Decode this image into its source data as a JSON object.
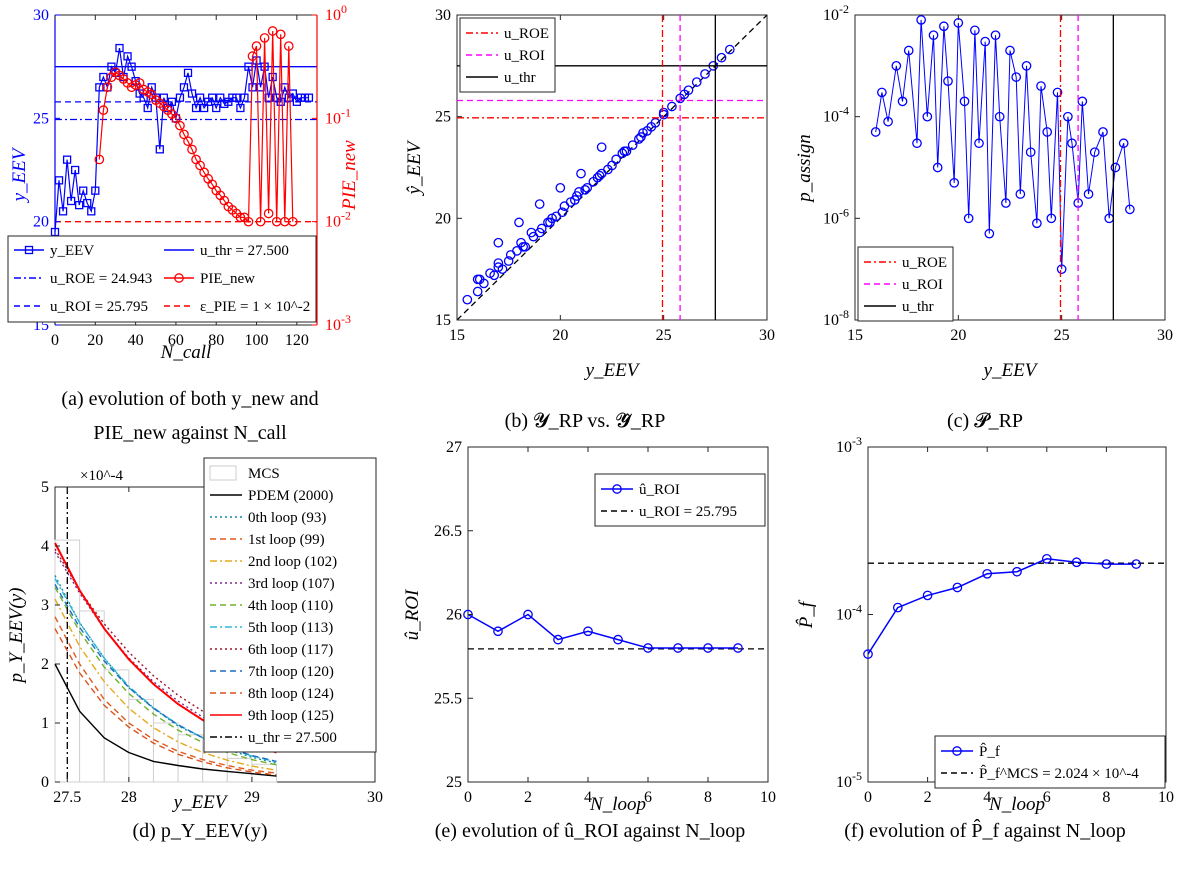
{
  "captions": {
    "a_line1": "(a) evolution of both y_new and",
    "a_line2": "PIE_new against N_call",
    "b": "(b) 𝓨_RP vs. 𝓨̂_RP",
    "c": "(c) 𝓟_RP",
    "d": "(d) p_Y_EEV(y)",
    "e": "(e) evolution of û_ROI against N_loop",
    "f": "(f) evolution of P̂_f against N_loop"
  },
  "chart_data": [
    {
      "id": "a",
      "type": "line",
      "xlabel": "N_call",
      "ylabel": "y_EEV",
      "y2label": "PIE_new",
      "xlim": [
        0,
        130
      ],
      "ylim": [
        15,
        30
      ],
      "y2lim": [
        0.001,
        1
      ],
      "y2scale": "log",
      "xticks": [
        "0",
        "20",
        "40",
        "60",
        "80",
        "100",
        "120"
      ],
      "yticks": [
        "15",
        "20",
        "25",
        "30"
      ],
      "y2ticks": [
        "10^-3",
        "10^-2",
        "10^-1",
        "10^0"
      ],
      "colors": {
        "left": "#0000ff",
        "right": "#ff0000"
      },
      "lines": {
        "u_thr": 27.5,
        "u_ROE": 24.943,
        "u_ROI": 25.795,
        "eps_PIE": 0.01
      },
      "legend": [
        {
          "label": "y_EEV",
          "style": "solid-square",
          "color": "#0000ff"
        },
        {
          "label": "u_thr = 27.500",
          "style": "solid",
          "color": "#0000ff"
        },
        {
          "label": "u_ROE = 24.943",
          "style": "dashdot",
          "color": "#0000ff"
        },
        {
          "label": "PIE_new",
          "style": "solid-circle",
          "color": "#ff0000"
        },
        {
          "label": "u_ROI = 25.795",
          "style": "dashed",
          "color": "#0000ff"
        },
        {
          "label": "ε_PIE = 1 × 10^-2",
          "style": "dashed",
          "color": "#ff0000"
        }
      ],
      "series": [
        {
          "name": "y_EEV",
          "x": [
            0,
            2,
            4,
            6,
            8,
            10,
            12,
            14,
            16,
            18,
            20,
            22,
            24,
            26,
            28,
            30,
            32,
            34,
            36,
            38,
            40,
            42,
            44,
            46,
            48,
            50,
            52,
            54,
            56,
            58,
            60,
            62,
            64,
            66,
            68,
            70,
            72,
            74,
            76,
            78,
            80,
            82,
            84,
            86,
            88,
            90,
            92,
            94,
            96,
            98,
            100,
            102,
            104,
            106,
            108,
            110,
            112,
            114,
            116,
            118,
            120,
            122,
            124,
            126
          ],
          "values": [
            19.5,
            22.0,
            20.5,
            23.0,
            21.0,
            22.5,
            20.8,
            21.5,
            20.9,
            20.5,
            21.5,
            26.5,
            27.0,
            26.5,
            27.5,
            27.2,
            28.4,
            27.0,
            28.0,
            27.5,
            26.8,
            26.2,
            26.0,
            25.5,
            26.5,
            26.0,
            23.5,
            26.0,
            25.5,
            25.8,
            25.0,
            26.0,
            26.5,
            27.2,
            26.2,
            25.5,
            26.0,
            25.5,
            25.8,
            26.0,
            25.5,
            26.0,
            25.7,
            25.8,
            26.0,
            26.0,
            25.5,
            26.0,
            27.5,
            26.5,
            27.8,
            26.5,
            27.5,
            26.0,
            27.0,
            26.0,
            25.8,
            26.5,
            26.0,
            26.2,
            25.8,
            26.0,
            26.0,
            26.0
          ]
        },
        {
          "name": "PIE_new",
          "x": [
            22,
            24,
            26,
            28,
            30,
            32,
            34,
            36,
            38,
            40,
            42,
            44,
            46,
            48,
            50,
            52,
            54,
            56,
            58,
            60,
            62,
            64,
            66,
            68,
            70,
            72,
            74,
            76,
            78,
            80,
            82,
            84,
            86,
            88,
            90,
            92,
            94,
            96,
            98,
            100,
            102,
            104,
            106,
            108,
            110,
            112,
            114,
            116,
            118
          ],
          "values": [
            0.04,
            0.12,
            0.2,
            0.25,
            0.28,
            0.26,
            0.24,
            0.22,
            0.2,
            0.21,
            0.22,
            0.19,
            0.18,
            0.17,
            0.15,
            0.14,
            0.13,
            0.12,
            0.11,
            0.1,
            0.085,
            0.07,
            0.06,
            0.05,
            0.04,
            0.035,
            0.03,
            0.026,
            0.023,
            0.02,
            0.018,
            0.016,
            0.014,
            0.013,
            0.012,
            0.011,
            0.011,
            0.01,
            0.4,
            0.5,
            0.01,
            0.6,
            0.012,
            0.7,
            0.01,
            0.65,
            0.01,
            0.5,
            0.01
          ]
        }
      ]
    },
    {
      "id": "b",
      "type": "scatter",
      "xlabel": "y_EEV",
      "ylabel": "ŷ_EEV",
      "xlim": [
        15,
        30
      ],
      "ylim": [
        15,
        30
      ],
      "xticks": [
        "15",
        "20",
        "25",
        "30"
      ],
      "yticks": [
        "15",
        "20",
        "25",
        "30"
      ],
      "lines": {
        "u_ROE": 24.943,
        "u_ROI": 25.795,
        "u_thr": 27.5
      },
      "legend": [
        {
          "label": "u_ROE",
          "style": "dashdot",
          "color": "#ff0000"
        },
        {
          "label": "u_ROI",
          "style": "dashed",
          "color": "#ff00ff"
        },
        {
          "label": "u_thr",
          "style": "solid",
          "color": "#000000"
        }
      ],
      "series": [
        {
          "name": "",
          "x": [
            15.5,
            16.0,
            16.3,
            16.8,
            17.2,
            17.5,
            17.9,
            18.3,
            18.7,
            19.0,
            19.4,
            19.8,
            20.1,
            20.5,
            20.9,
            21.2,
            21.6,
            22.0,
            22.3,
            22.7,
            23.1,
            23.5,
            23.9,
            24.2,
            24.6,
            25.0,
            25.4,
            25.8,
            26.2,
            26.6,
            27.0,
            27.4,
            27.8,
            28.2,
            16.1,
            16.6,
            17.0,
            17.6,
            18.1,
            18.6,
            19.1,
            19.6,
            20.2,
            20.8,
            21.3,
            21.8,
            22.5,
            23.2,
            23.8,
            24.4,
            17.0,
            18.0,
            19.0,
            20.0,
            21.0,
            22.0,
            16.0,
            17.0,
            18.2,
            19.5,
            20.7,
            21.9,
            23.0,
            24.0,
            25.0,
            26.0
          ],
          "values": [
            16.0,
            16.4,
            16.8,
            17.2,
            17.5,
            17.9,
            18.4,
            18.6,
            19.1,
            19.3,
            19.8,
            20.1,
            20.3,
            20.8,
            21.3,
            21.4,
            21.8,
            22.2,
            22.4,
            22.9,
            23.3,
            23.6,
            24.0,
            24.3,
            24.7,
            25.1,
            25.5,
            25.9,
            26.3,
            26.7,
            27.1,
            27.5,
            27.9,
            28.3,
            17.0,
            17.3,
            17.8,
            18.2,
            18.8,
            19.3,
            19.5,
            20.0,
            20.6,
            21.1,
            21.5,
            22.0,
            22.6,
            23.3,
            23.9,
            24.5,
            18.8,
            19.8,
            20.7,
            21.5,
            22.2,
            23.5,
            17.0,
            17.6,
            18.6,
            19.8,
            20.9,
            22.1,
            23.2,
            24.2,
            25.2,
            26.1
          ]
        }
      ]
    },
    {
      "id": "c",
      "type": "line",
      "xlabel": "y_EEV",
      "ylabel": "p_assign",
      "xlim": [
        15,
        30
      ],
      "ylim": [
        1e-08,
        0.01
      ],
      "yscale": "log",
      "xticks": [
        "15",
        "20",
        "25",
        "30"
      ],
      "yticks": [
        "10^-8",
        "10^-6",
        "10^-4",
        "10^-2"
      ],
      "lines": {
        "u_ROE": 24.943,
        "u_ROI": 25.795,
        "u_thr": 27.5
      },
      "legend": [
        {
          "label": "u_ROE",
          "style": "dashdot",
          "color": "#ff0000"
        },
        {
          "label": "u_ROI",
          "style": "dashed",
          "color": "#ff00ff"
        },
        {
          "label": "u_thr",
          "style": "solid",
          "color": "#000000"
        }
      ],
      "series": [
        {
          "name": "",
          "x": [
            16.0,
            16.3,
            16.6,
            17.0,
            17.3,
            17.6,
            18.0,
            18.2,
            18.5,
            18.8,
            19.0,
            19.3,
            19.5,
            19.8,
            20.0,
            20.3,
            20.5,
            20.8,
            21.0,
            21.3,
            21.5,
            21.8,
            22.0,
            22.3,
            22.5,
            22.8,
            23.0,
            23.3,
            23.5,
            23.8,
            24.0,
            24.3,
            24.5,
            24.8,
            25.0,
            25.3,
            25.5,
            25.8,
            26.0,
            26.3,
            26.6,
            27.0,
            27.3,
            27.6,
            28.0,
            28.3
          ],
          "values": [
            5e-05,
            0.0003,
            8e-05,
            0.001,
            0.0002,
            0.002,
            3e-05,
            0.008,
            0.0001,
            0.004,
            1e-05,
            0.006,
            0.0005,
            5e-06,
            0.007,
            0.0002,
            1e-06,
            0.005,
            3e-05,
            0.003,
            5e-07,
            0.004,
            0.0001,
            2e-06,
            0.002,
            0.0006,
            3e-06,
            0.001,
            2e-05,
            8e-07,
            0.0004,
            5e-05,
            1e-06,
            0.0003,
            1e-07,
            0.0001,
            3e-05,
            2e-06,
            0.0002,
            3e-06,
            2e-05,
            5e-05,
            1e-06,
            1e-05,
            3e-05,
            1.5e-06
          ]
        }
      ]
    },
    {
      "id": "d",
      "type": "line",
      "xlabel": "y_EEV",
      "ylabel": "p_Y_EEV(y)",
      "exponent_label": "×10^-4",
      "xlim": [
        27.4,
        30
      ],
      "ylim": [
        0,
        5
      ],
      "xticks": [
        "27.5",
        "28",
        "29",
        "30"
      ],
      "yticks": [
        "0",
        "1",
        "2",
        "3",
        "4",
        "5"
      ],
      "lines": {
        "u_thr": 27.5
      },
      "legend": [
        {
          "label": "MCS",
          "color": "#cccccc"
        },
        {
          "label": "PDEM (2000)",
          "color": "#000000"
        },
        {
          "label": "0th loop (93)",
          "color": "#0f8fa6"
        },
        {
          "label": "1st loop (99)",
          "color": "#e05a1c"
        },
        {
          "label": "2nd loop (102)",
          "color": "#e6a81c"
        },
        {
          "label": "3rd loop (107)",
          "color": "#7a2a8f"
        },
        {
          "label": "4th loop (110)",
          "color": "#6fb22c"
        },
        {
          "label": "5th loop (113)",
          "color": "#2fb7d9"
        },
        {
          "label": "6th loop (117)",
          "color": "#a0142f"
        },
        {
          "label": "7th loop (120)",
          "color": "#1a6fbf"
        },
        {
          "label": "8th loop (124)",
          "color": "#d9531e"
        },
        {
          "label": "9th loop (125)",
          "color": "#ff0000"
        },
        {
          "label": "u_thr = 27.500",
          "color": "#000000"
        }
      ],
      "mcs_bars": [
        4.1,
        2.9,
        1.9,
        1.4,
        1.0,
        0.8,
        0.6,
        0.4,
        0.3
      ],
      "mcs_bin_starts": [
        27.4,
        27.6,
        27.8,
        28.0,
        28.2,
        28.4,
        28.6,
        28.8,
        29.0
      ],
      "curves": {
        "x": [
          27.4,
          27.6,
          27.8,
          28.0,
          28.2,
          28.4,
          28.6,
          28.8,
          29.0,
          29.2
        ],
        "PDEM": [
          2.0,
          1.2,
          0.75,
          0.5,
          0.35,
          0.28,
          0.22,
          0.18,
          0.14,
          0.1
        ],
        "loop0": [
          3.5,
          2.7,
          2.1,
          1.6,
          1.25,
          0.95,
          0.75,
          0.55,
          0.42,
          0.32
        ],
        "loop1": [
          2.8,
          2.0,
          1.4,
          1.0,
          0.72,
          0.52,
          0.38,
          0.28,
          0.2,
          0.15
        ],
        "loop2": [
          3.1,
          2.3,
          1.7,
          1.25,
          0.92,
          0.68,
          0.5,
          0.37,
          0.27,
          0.2
        ],
        "loop3": [
          3.9,
          3.2,
          2.6,
          2.1,
          1.7,
          1.37,
          1.1,
          0.88,
          0.7,
          0.55
        ],
        "loop4": [
          3.3,
          2.55,
          1.95,
          1.5,
          1.15,
          0.88,
          0.67,
          0.5,
          0.38,
          0.29
        ],
        "loop5": [
          3.45,
          2.7,
          2.1,
          1.62,
          1.26,
          0.97,
          0.75,
          0.58,
          0.44,
          0.34
        ],
        "loop6": [
          3.95,
          3.25,
          2.68,
          2.2,
          1.8,
          1.47,
          1.2,
          0.97,
          0.78,
          0.63
        ],
        "loop7": [
          3.35,
          2.62,
          2.05,
          1.6,
          1.25,
          0.97,
          0.75,
          0.58,
          0.45,
          0.35
        ],
        "loop8": [
          2.6,
          1.85,
          1.3,
          0.93,
          0.66,
          0.47,
          0.34,
          0.24,
          0.17,
          0.12
        ],
        "loop9": [
          4.05,
          3.25,
          2.6,
          2.08,
          1.66,
          1.32,
          1.05,
          0.83,
          0.65,
          0.5
        ]
      }
    },
    {
      "id": "e",
      "type": "line",
      "xlabel": "N_loop",
      "ylabel": "û_ROI",
      "xlim": [
        0,
        10
      ],
      "ylim": [
        25,
        27
      ],
      "xticks": [
        "0",
        "2",
        "4",
        "6",
        "8",
        "10"
      ],
      "yticks": [
        "25",
        "25.5",
        "26",
        "26.5",
        "27"
      ],
      "legend": [
        {
          "label": "û_ROI",
          "color": "#0000ff"
        },
        {
          "label": "u_ROI = 25.795",
          "color": "#000000"
        }
      ],
      "reference": 25.795,
      "x": [
        0,
        1,
        2,
        3,
        4,
        5,
        6,
        7,
        8,
        9
      ],
      "values": [
        26.0,
        25.9,
        26.0,
        25.85,
        25.9,
        25.85,
        25.8,
        25.8,
        25.8,
        25.8
      ]
    },
    {
      "id": "f",
      "type": "line",
      "xlabel": "N_loop",
      "ylabel": "P̂_f",
      "xlim": [
        0,
        10
      ],
      "ylim": [
        1e-05,
        0.001
      ],
      "yscale": "log",
      "xticks": [
        "0",
        "2",
        "4",
        "6",
        "8",
        "10"
      ],
      "yticks": [
        "10^-5",
        "10^-4",
        "10^-3"
      ],
      "legend": [
        {
          "label": "P̂_f",
          "color": "#0000ff"
        },
        {
          "label": "P̂_f^MCS = 2.024 × 10^-4",
          "color": "#000000"
        }
      ],
      "reference": 0.0002024,
      "x": [
        0,
        1,
        2,
        3,
        4,
        5,
        6,
        7,
        8,
        9
      ],
      "values": [
        5.8e-05,
        0.00011,
        0.00013,
        0.000145,
        0.000175,
        0.00018,
        0.000215,
        0.000205,
        0.0002,
        0.0002
      ]
    }
  ]
}
